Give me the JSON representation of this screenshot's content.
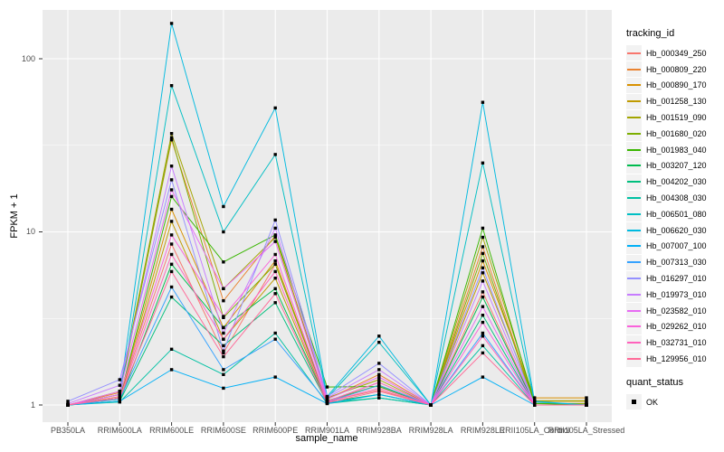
{
  "figure": {
    "bg": "#ffffff",
    "panel_bg": "#ebebeb",
    "grid_color": "#ffffff",
    "tick_color": "#333333",
    "tick_label_color": "#4d4d4d",
    "marker_color": "#000000",
    "legend_key_bg": "#f2f2f2"
  },
  "chart_data": {
    "type": "line",
    "title": "",
    "xlabel": "sample_name",
    "ylabel": "FPKM + 1",
    "y_scale": "log10",
    "ylim": [
      0.8,
      191
    ],
    "y_ticks": [
      1,
      10,
      100
    ],
    "y_minor": [
      3.162,
      31.623
    ],
    "grid": true,
    "legend_position": "right",
    "legend_title": "tracking_id",
    "marker": "black-square",
    "categories": [
      "PB350LA",
      "RRIM600LA",
      "RRIM600LE",
      "RRIM600SE",
      "RRIM600PE",
      "RRIM901LA",
      "RRIM928BA",
      "RRIM928LA",
      "RRIM928LE",
      "RRII105LA_Control",
      "RRII105LA_Stressed"
    ],
    "series": [
      {
        "name": "Hb_000349_250",
        "color": "#F8766D",
        "values": [
          1.0,
          1.12,
          8.5,
          2.0,
          6.5,
          1.05,
          1.22,
          1.0,
          4.5,
          1.0,
          1.0
        ]
      },
      {
        "name": "Hb_000809_220",
        "color": "#EA8331",
        "values": [
          1.0,
          1.18,
          34,
          4.0,
          9.5,
          1.08,
          1.5,
          1.0,
          8.2,
          1.02,
          1.02
        ]
      },
      {
        "name": "Hb_000890_170",
        "color": "#D89000",
        "values": [
          1.0,
          1.1,
          13.5,
          2.8,
          6.8,
          1.05,
          1.35,
          1.0,
          6.8,
          1.1,
          1.1
        ]
      },
      {
        "name": "Hb_001258_130",
        "color": "#C09B00",
        "values": [
          1.0,
          1.08,
          11.5,
          2.4,
          5.4,
          1.04,
          1.3,
          1.0,
          5.8,
          1.05,
          1.05
        ]
      },
      {
        "name": "Hb_001519_090",
        "color": "#A3A500",
        "values": [
          1.0,
          1.2,
          37,
          4.7,
          9.3,
          1.1,
          1.4,
          1.0,
          9.3,
          1.06,
          1.06
        ]
      },
      {
        "name": "Hb_001680_020",
        "color": "#7CAE00",
        "values": [
          1.0,
          1.15,
          35,
          3.2,
          6.5,
          1.06,
          1.3,
          1.0,
          7.5,
          1.02,
          1.02
        ]
      },
      {
        "name": "Hb_001983_040",
        "color": "#39B600",
        "values": [
          1.0,
          1.1,
          16,
          6.7,
          9.6,
          1.27,
          1.28,
          1.0,
          10.5,
          1.02,
          1.0
        ]
      },
      {
        "name": "Hb_003207_120",
        "color": "#00BB4E",
        "values": [
          1.0,
          1.05,
          6.5,
          2.8,
          4.7,
          1.04,
          1.15,
          1.0,
          4.2,
          1.0,
          1.0
        ]
      },
      {
        "name": "Hb_004202_030",
        "color": "#00BF7D",
        "values": [
          1.0,
          1.05,
          4.2,
          2.2,
          3.9,
          1.03,
          1.1,
          1.0,
          3.3,
          1.0,
          1.0
        ]
      },
      {
        "name": "Hb_004308_030",
        "color": "#00C1A3",
        "values": [
          1.0,
          1.04,
          2.1,
          1.5,
          2.6,
          1.02,
          1.1,
          1.0,
          2.2,
          1.0,
          1.0
        ]
      },
      {
        "name": "Hb_006501_080",
        "color": "#00BFC4",
        "values": [
          1.0,
          1.1,
          70,
          10.0,
          28,
          1.1,
          2.3,
          1.0,
          25,
          1.04,
          1.0
        ]
      },
      {
        "name": "Hb_006620_030",
        "color": "#00BAE0",
        "values": [
          1.0,
          1.15,
          160,
          14.0,
          52,
          1.12,
          2.5,
          1.0,
          56,
          1.05,
          1.0
        ]
      },
      {
        "name": "Hb_007007_100",
        "color": "#00B0F6",
        "values": [
          1.0,
          1.05,
          1.6,
          1.25,
          1.45,
          1.02,
          1.15,
          1.0,
          1.45,
          1.0,
          1.0
        ]
      },
      {
        "name": "Hb_007313_030",
        "color": "#35A2FF",
        "values": [
          1.0,
          1.08,
          4.8,
          1.6,
          2.4,
          1.04,
          1.3,
          1.0,
          2.6,
          1.0,
          1.0
        ]
      },
      {
        "name": "Hb_016297_010",
        "color": "#9590FF",
        "values": [
          1.05,
          1.4,
          20,
          2.05,
          11.7,
          1.12,
          1.74,
          1.0,
          6.2,
          1.0,
          1.0
        ]
      },
      {
        "name": "Hb_019973_010",
        "color": "#C77CFF",
        "values": [
          1.02,
          1.3,
          24,
          2.6,
          10.5,
          1.1,
          1.6,
          1.0,
          5.2,
          1.0,
          1.0
        ]
      },
      {
        "name": "Hb_023582_010",
        "color": "#E76BF3",
        "values": [
          1.0,
          1.2,
          17.5,
          4.7,
          8.8,
          1.08,
          1.45,
          1.0,
          3.7,
          1.0,
          1.0
        ]
      },
      {
        "name": "Hb_029262_010",
        "color": "#FA62DB",
        "values": [
          1.0,
          1.15,
          9.6,
          3.25,
          7.4,
          1.05,
          1.35,
          1.0,
          3.0,
          1.0,
          1.0
        ]
      },
      {
        "name": "Hb_032731_010",
        "color": "#FF62BC",
        "values": [
          1.0,
          1.1,
          7.4,
          2.4,
          5.9,
          1.04,
          1.25,
          1.0,
          2.5,
          1.0,
          1.0
        ]
      },
      {
        "name": "Hb_129956_010",
        "color": "#FF6A98",
        "values": [
          1.0,
          1.1,
          5.9,
          1.9,
          4.4,
          1.03,
          1.2,
          1.0,
          2.0,
          1.0,
          1.0
        ]
      }
    ],
    "quant_legend": {
      "title": "quant_status",
      "items": [
        {
          "label": "OK",
          "marker": "black-square"
        }
      ]
    }
  }
}
